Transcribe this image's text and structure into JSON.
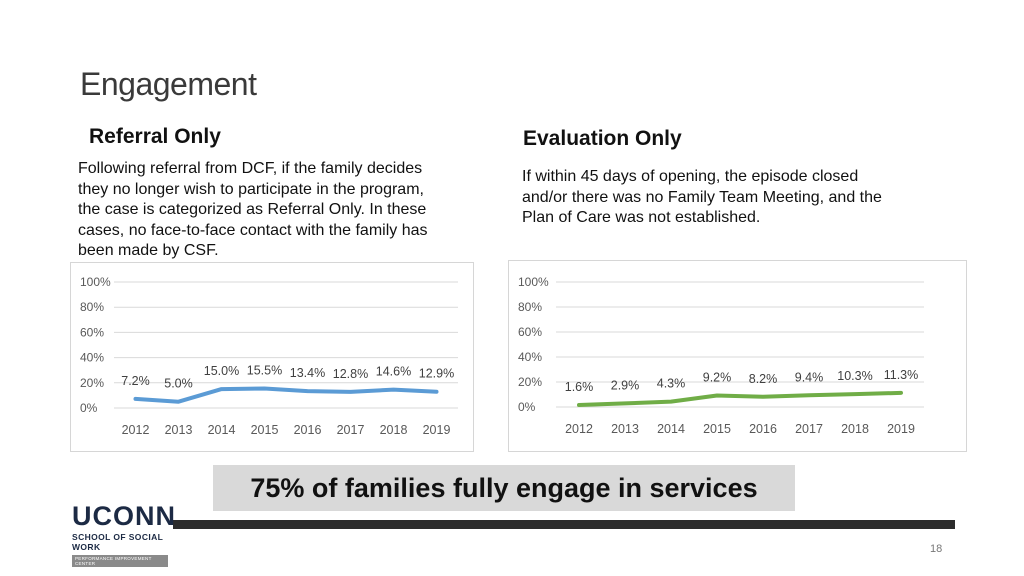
{
  "slide": {
    "title": "Engagement",
    "page_number": "18",
    "banner": "75% of families fully engage in services"
  },
  "left": {
    "heading": "Referral Only",
    "lines": [
      "Following referral from DCF, if the family decides",
      "they no longer wish to participate in the program,",
      "the case is categorized as Referral Only. In these",
      "cases, no face-to-face contact with the family has",
      "been made by CSF."
    ]
  },
  "right": {
    "heading": "Evaluation Only",
    "lines": [
      "If within 45 days of opening, the episode closed",
      "and/or there was no Family Team Meeting, and the",
      "Plan of Care was not established."
    ]
  },
  "logo": {
    "main": "UCONN",
    "sub": "SCHOOL OF SOCIAL WORK",
    "tag": "PERFORMANCE IMPROVEMENT CENTER"
  },
  "chart_data": [
    {
      "type": "line",
      "x": [
        "2012",
        "2013",
        "2014",
        "2015",
        "2016",
        "2017",
        "2018",
        "2019"
      ],
      "values": [
        7.2,
        5.0,
        15.0,
        15.5,
        13.4,
        12.8,
        14.6,
        12.9
      ],
      "labels": [
        "7.2%",
        "5.0%",
        "15.0%",
        "15.5%",
        "13.4%",
        "12.8%",
        "14.6%",
        "12.9%"
      ],
      "yticks": [
        "0%",
        "20%",
        "40%",
        "60%",
        "80%",
        "100%"
      ],
      "ylim": [
        0,
        100
      ],
      "grid": true,
      "color": "#5b9bd5"
    },
    {
      "type": "line",
      "x": [
        "2012",
        "2013",
        "2014",
        "2015",
        "2016",
        "2017",
        "2018",
        "2019"
      ],
      "values": [
        1.6,
        2.9,
        4.3,
        9.2,
        8.2,
        9.4,
        10.3,
        11.3
      ],
      "labels": [
        "1.6%",
        "2.9%",
        "4.3%",
        "9.2%",
        "8.2%",
        "9.4%",
        "10.3%",
        "11.3%"
      ],
      "yticks": [
        "0%",
        "20%",
        "40%",
        "60%",
        "80%",
        "100%"
      ],
      "ylim": [
        0,
        100
      ],
      "grid": true,
      "color": "#70ad47"
    }
  ]
}
